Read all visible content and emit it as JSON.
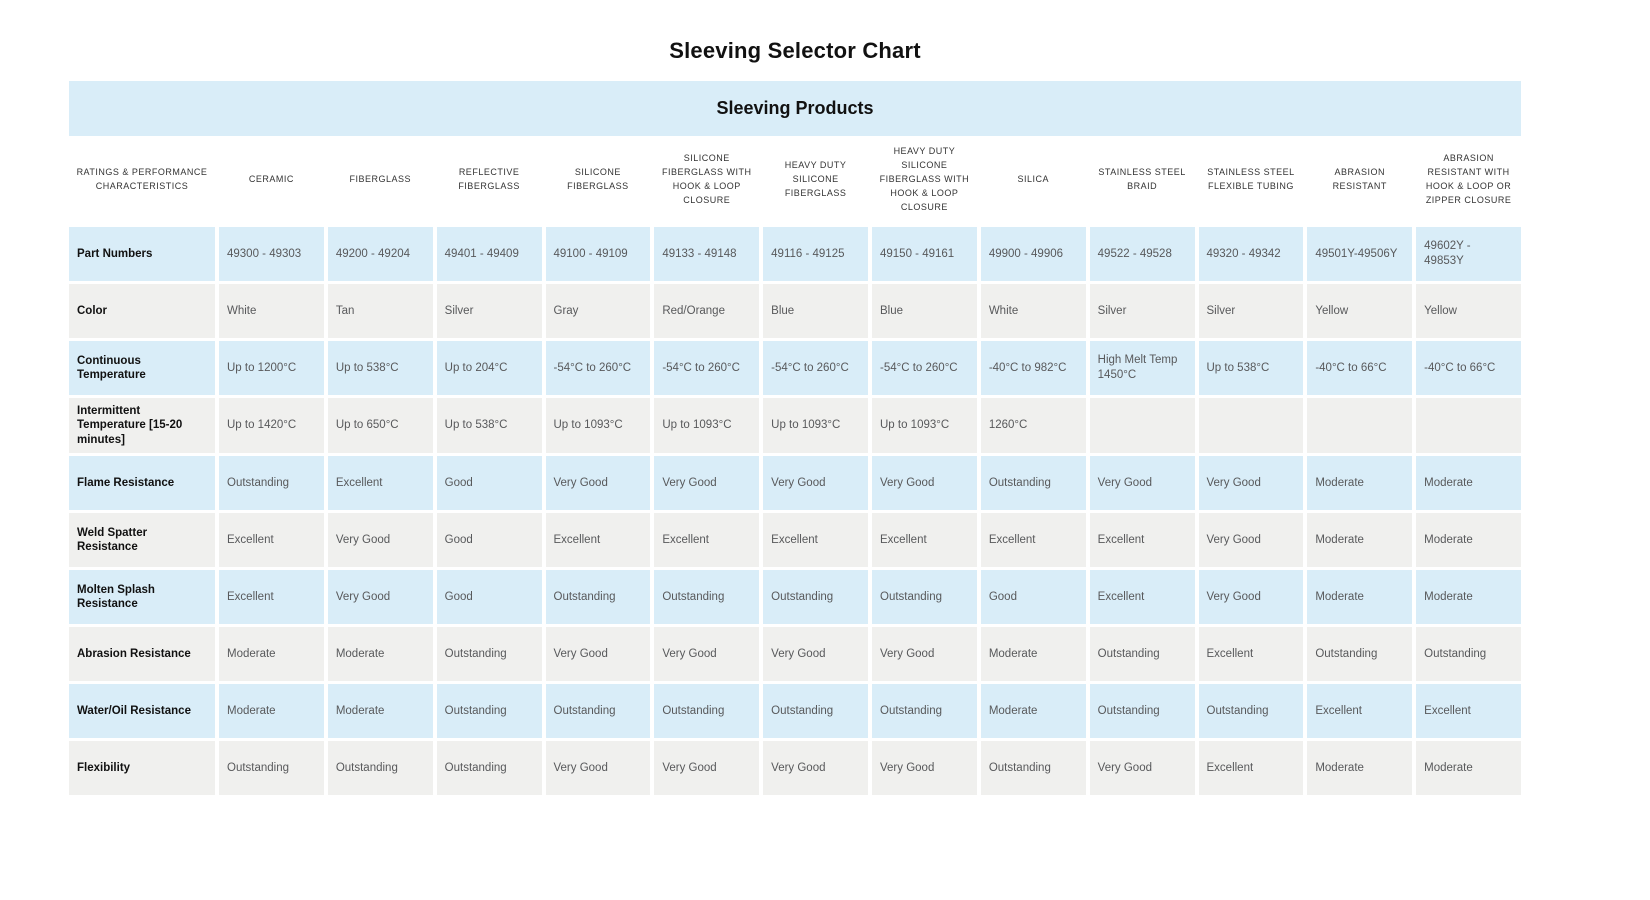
{
  "colors": {
    "row_blue": "#d9edf8",
    "row_gray": "#f0f0ee",
    "heading_text": "#111111",
    "body_text": "#58595b"
  },
  "chart_data": {
    "type": "table",
    "title": "Sleeving Selector Chart",
    "group_header": "Sleeving Products",
    "corner_header": "RATINGS & PERFORMANCE CHARACTERISTICS",
    "columns": [
      "CERAMIC",
      "FIBERGLASS",
      "REFLECTIVE FIBERGLASS",
      "SILICONE FIBERGLASS",
      "SILICONE FIBERGLASS WITH HOOK & LOOP CLOSURE",
      "HEAVY DUTY SILICONE FIBERGLASS",
      "HEAVY DUTY SILICONE FIBERGLASS WITH HOOK & LOOP CLOSURE",
      "SILICA",
      "STAINLESS STEEL BRAID",
      "STAINLESS STEEL FLEXIBLE TUBING",
      "ABRASION RESISTANT",
      "ABRASION RESISTANT WITH HOOK & LOOP OR ZIPPER CLOSURE"
    ],
    "rows": [
      {
        "label": "Part Numbers",
        "values": [
          "49300 - 49303",
          "49200 - 49204",
          "49401 - 49409",
          "49100 - 49109",
          "49133 - 49148",
          "49116 - 49125",
          "49150 - 49161",
          "49900 - 49906",
          "49522 - 49528",
          "49320 - 49342",
          "49501Y-49506Y",
          "49602Y - 49853Y"
        ]
      },
      {
        "label": "Color",
        "values": [
          "White",
          "Tan",
          "Silver",
          "Gray",
          "Red/Orange",
          "Blue",
          "Blue",
          "White",
          "Silver",
          "Silver",
          "Yellow",
          "Yellow"
        ]
      },
      {
        "label": "Continuous Temperature",
        "values": [
          "Up to 1200°C",
          "Up to 538°C",
          "Up to 204°C",
          "-54°C to 260°C",
          "-54°C to 260°C",
          "-54°C to 260°C",
          "-54°C to 260°C",
          "-40°C to 982°C",
          "High Melt Temp 1450°C",
          "Up to 538°C",
          "-40°C to 66°C",
          "-40°C to 66°C"
        ]
      },
      {
        "label": "Intermittent Temperature [15-20 minutes]",
        "values": [
          "Up to 1420°C",
          "Up to 650°C",
          "Up to 538°C",
          "Up to 1093°C",
          "Up to 1093°C",
          "Up to 1093°C",
          "Up to 1093°C",
          "1260°C",
          "",
          "",
          "",
          ""
        ]
      },
      {
        "label": "Flame Resistance",
        "values": [
          "Outstanding",
          "Excellent",
          "Good",
          "Very Good",
          "Very Good",
          "Very Good",
          "Very Good",
          "Outstanding",
          "Very Good",
          "Very Good",
          "Moderate",
          "Moderate"
        ]
      },
      {
        "label": "Weld Spatter Resistance",
        "values": [
          "Excellent",
          "Very Good",
          "Good",
          "Excellent",
          "Excellent",
          "Excellent",
          "Excellent",
          "Excellent",
          "Excellent",
          "Very Good",
          "Moderate",
          "Moderate"
        ]
      },
      {
        "label": "Molten Splash Resistance",
        "values": [
          "Excellent",
          "Very Good",
          "Good",
          "Outstanding",
          "Outstanding",
          "Outstanding",
          "Outstanding",
          "Good",
          "Excellent",
          "Very Good",
          "Moderate",
          "Moderate"
        ]
      },
      {
        "label": "Abrasion Resistance",
        "values": [
          "Moderate",
          "Moderate",
          "Outstanding",
          "Very Good",
          "Very Good",
          "Very Good",
          "Very Good",
          "Moderate",
          "Outstanding",
          "Excellent",
          "Outstanding",
          "Outstanding"
        ]
      },
      {
        "label": "Water/Oil Resistance",
        "values": [
          "Moderate",
          "Moderate",
          "Outstanding",
          "Outstanding",
          "Outstanding",
          "Outstanding",
          "Outstanding",
          "Moderate",
          "Outstanding",
          "Outstanding",
          "Excellent",
          "Excellent"
        ]
      },
      {
        "label": "Flexibility",
        "values": [
          "Outstanding",
          "Outstanding",
          "Outstanding",
          "Very Good",
          "Very Good",
          "Very Good",
          "Very Good",
          "Outstanding",
          "Very Good",
          "Excellent",
          "Moderate",
          "Moderate"
        ]
      }
    ]
  }
}
